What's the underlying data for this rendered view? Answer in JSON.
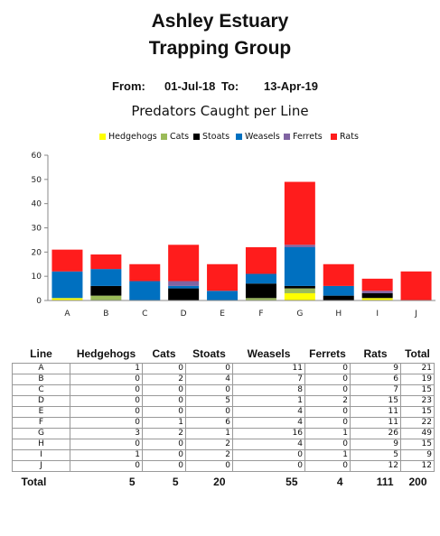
{
  "header": {
    "title_line1": "Ashley Estuary",
    "title_line2": "Trapping Group",
    "from_label": "From:",
    "from_date": "01-Jul-18",
    "to_label": "To:",
    "to_date": "13-Apr-19"
  },
  "chart_data": {
    "type": "bar",
    "stacked": true,
    "title": "Predators Caught per Line",
    "categories": [
      "A",
      "B",
      "C",
      "D",
      "E",
      "F",
      "G",
      "H",
      "I",
      "J"
    ],
    "series": [
      {
        "name": "Hedgehogs",
        "color": "#ffff00",
        "values": [
          1,
          0,
          0,
          0,
          0,
          0,
          3,
          0,
          1,
          0
        ]
      },
      {
        "name": "Cats",
        "color": "#9bbb59",
        "values": [
          0,
          2,
          0,
          0,
          0,
          1,
          2,
          0,
          0,
          0
        ]
      },
      {
        "name": "Stoats",
        "color": "#000000",
        "values": [
          0,
          4,
          0,
          5,
          0,
          6,
          1,
          2,
          2,
          0
        ]
      },
      {
        "name": "Weasels",
        "color": "#0070c0",
        "values": [
          11,
          7,
          8,
          1,
          4,
          4,
          16,
          4,
          0,
          0
        ]
      },
      {
        "name": "Ferrets",
        "color": "#8064a2",
        "values": [
          0,
          0,
          0,
          2,
          0,
          0,
          1,
          0,
          1,
          0
        ]
      },
      {
        "name": "Rats",
        "color": "#ff1c1c",
        "values": [
          9,
          6,
          7,
          15,
          11,
          11,
          26,
          9,
          5,
          12
        ]
      }
    ],
    "ylim": [
      0,
      60
    ],
    "yticks": [
      0,
      10,
      20,
      30,
      40,
      50,
      60
    ],
    "legend": "top",
    "grid": false
  },
  "table": {
    "headers": [
      "Line",
      "Hedgehogs",
      "Cats",
      "Stoats",
      "Weasels",
      "Ferrets",
      "Rats",
      "Total"
    ],
    "rows": [
      [
        "A",
        "1",
        "0",
        "0",
        "11",
        "0",
        "9",
        "21"
      ],
      [
        "B",
        "0",
        "2",
        "4",
        "7",
        "0",
        "6",
        "19"
      ],
      [
        "C",
        "0",
        "0",
        "0",
        "8",
        "0",
        "7",
        "15"
      ],
      [
        "D",
        "0",
        "0",
        "5",
        "1",
        "2",
        "15",
        "23"
      ],
      [
        "E",
        "0",
        "0",
        "0",
        "4",
        "0",
        "11",
        "15"
      ],
      [
        "F",
        "0",
        "1",
        "6",
        "4",
        "0",
        "11",
        "22"
      ],
      [
        "G",
        "3",
        "2",
        "1",
        "16",
        "1",
        "26",
        "49"
      ],
      [
        "H",
        "0",
        "0",
        "2",
        "4",
        "0",
        "9",
        "15"
      ],
      [
        "I",
        "1",
        "0",
        "2",
        "0",
        "1",
        "5",
        "9"
      ],
      [
        "J",
        "0",
        "0",
        "0",
        "0",
        "0",
        "12",
        "12"
      ]
    ],
    "totals": [
      "Total",
      "5",
      "5",
      "20",
      "55",
      "4",
      "111",
      "200"
    ]
  }
}
